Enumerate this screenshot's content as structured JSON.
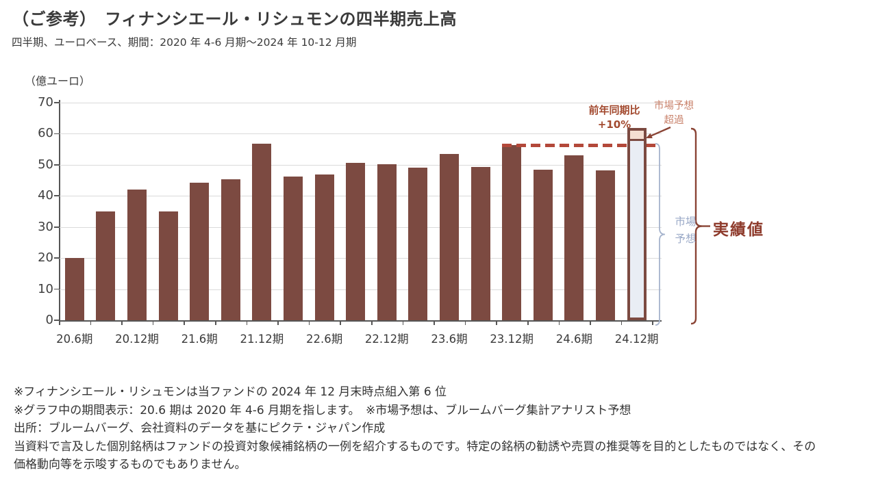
{
  "header": {
    "title": "（ご参考）　フィナンシエール・リシュモンの四半期売上高",
    "subtitle": "四半期、ユーロベース、期間：2020 年 4-6 月期～2024 年 10-12 月期"
  },
  "chart_data": {
    "type": "bar",
    "title": "フィナンシエール・リシュモンの四半期売上高",
    "unit_label": "（億ユーロ）",
    "xlabel": "",
    "ylabel": "（億ユーロ）",
    "ylim": [
      0,
      70
    ],
    "yticks": [
      0,
      10,
      20,
      30,
      40,
      50,
      60,
      70
    ],
    "grid": true,
    "x_tick_labels": [
      "20.6期",
      "20.12期",
      "21.6期",
      "21.12期",
      "22.6期",
      "22.12期",
      "23.6期",
      "23.12期",
      "24.6期",
      "24.12期"
    ],
    "x_tick_every": 2,
    "bars": [
      20,
      35,
      42,
      35,
      44.2,
      45.3,
      56.8,
      46.3,
      46.8,
      50.7,
      50.2,
      49.1,
      53.6,
      49.2,
      56.3,
      48.5,
      53,
      48.3
    ],
    "final_bar": {
      "x_label": "24.12期",
      "actual": 61.9,
      "market_forecast": 57.6,
      "yoy_change": "+10%"
    },
    "dashed_line_value": 56.3
  },
  "annotations": {
    "yoy_line1": "前年同期比",
    "yoy_line2": "+10%",
    "beat_line1": "市場予想",
    "beat_line2": "超過",
    "forecast_line1": "市場",
    "forecast_line2": "予想",
    "actual_label": "実績値"
  },
  "colors": {
    "bar": "#7C4A41",
    "dashed_line": "#B3483A",
    "yoy_text": "#A2492E",
    "beat_text": "#C9826B",
    "beat_fill": "#F5DFD2",
    "forecast_fill": "#E9EDF4",
    "forecast_text": "#9AA9C7",
    "actual_text": "#8E3B2C",
    "brace_actual": "#8A4435",
    "brace_forecast": "#A5B3CC",
    "grid": "#DADADA",
    "axis": "#555555"
  },
  "footnotes": [
    "※フィナンシエール・リシュモンは当ファンドの 2024 年 12 月末時点組入第 6 位",
    "※グラフ中の期間表示：20.6 期は 2020 年 4-6 月期を指します。　※市場予想は、ブルームバーグ集計アナリスト予想",
    "出所：ブルームバーグ、会社資料のデータを基にピクテ・ジャパン作成",
    "当資料で言及した個別銘柄はファンドの投資対象候補銘柄の一例を紹介するものです。特定の銘柄の勧誘や売買の推奨等を目的としたものではなく、その",
    "価格動向等を示唆するものでもありません。"
  ]
}
